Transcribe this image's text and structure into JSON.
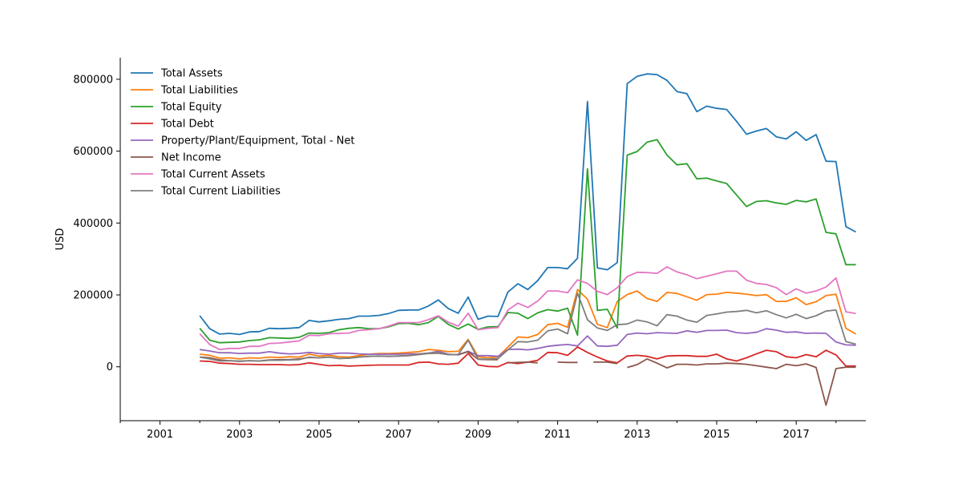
{
  "chart_data": {
    "type": "line",
    "title": "",
    "xlabel": "",
    "ylabel": "USD",
    "grid": false,
    "legend_position": "top-left",
    "xlim": [
      2000.0,
      2018.75
    ],
    "ylim": [
      -150000,
      860000
    ],
    "xticks": [
      {
        "value": 2001,
        "label": "2001"
      },
      {
        "value": 2003,
        "label": "2003"
      },
      {
        "value": 2005,
        "label": "2005"
      },
      {
        "value": 2007,
        "label": "2007"
      },
      {
        "value": 2009,
        "label": "2009"
      },
      {
        "value": 2011,
        "label": "2011"
      },
      {
        "value": 2013,
        "label": "2013"
      },
      {
        "value": 2015,
        "label": "2015"
      },
      {
        "value": 2017,
        "label": "2017"
      }
    ],
    "yticks": [
      {
        "value": 0,
        "label": "0"
      },
      {
        "value": 200000,
        "label": "200000"
      },
      {
        "value": 400000,
        "label": "400000"
      },
      {
        "value": 600000,
        "label": "600000"
      },
      {
        "value": 800000,
        "label": "800000"
      }
    ],
    "x": [
      2002.0,
      2002.25,
      2002.5,
      2002.75,
      2003.0,
      2003.25,
      2003.5,
      2003.75,
      2004.0,
      2004.25,
      2004.5,
      2004.75,
      2005.0,
      2005.25,
      2005.5,
      2005.75,
      2006.0,
      2006.25,
      2006.5,
      2006.75,
      2007.0,
      2007.25,
      2007.5,
      2007.75,
      2008.0,
      2008.25,
      2008.5,
      2008.75,
      2009.0,
      2009.25,
      2009.5,
      2009.75,
      2010.0,
      2010.25,
      2010.5,
      2010.75,
      2011.0,
      2011.25,
      2011.5,
      2011.75,
      2012.0,
      2012.25,
      2012.5,
      2012.75,
      2013.0,
      2013.25,
      2013.5,
      2013.75,
      2014.0,
      2014.25,
      2014.5,
      2014.75,
      2015.0,
      2015.25,
      2015.5,
      2015.75,
      2016.0,
      2016.25,
      2016.5,
      2016.75,
      2017.0,
      2017.25,
      2017.5,
      2017.75,
      2018.0,
      2018.25,
      2018.5
    ],
    "series": [
      {
        "name": "Total Assets",
        "color": "#1f77b4",
        "values": [
          142000,
          106000,
          91000,
          93000,
          90000,
          97000,
          98000,
          107000,
          106000,
          107000,
          109000,
          129000,
          125000,
          128000,
          132000,
          134000,
          141000,
          141000,
          143000,
          148000,
          157000,
          158000,
          158000,
          169000,
          186000,
          162000,
          149000,
          194000,
          132000,
          141000,
          140000,
          208000,
          231000,
          215000,
          240000,
          276000,
          276000,
          273000,
          302000,
          738000,
          275000,
          270000,
          290000,
          788000,
          808000,
          815000,
          813000,
          797000,
          766000,
          760000,
          710000,
          725000,
          719000,
          716000,
          683000,
          647000,
          656000,
          663000,
          640000,
          634000,
          654000,
          630000,
          646000,
          572000,
          571000,
          390000,
          375000
        ]
      },
      {
        "name": "Total Liabilities",
        "color": "#ff7f0e",
        "values": [
          35000,
          32000,
          24000,
          25000,
          22000,
          25000,
          24000,
          27000,
          26000,
          28000,
          27000,
          35000,
          30000,
          32000,
          28000,
          27000,
          31000,
          35000,
          37000,
          37000,
          38000,
          40000,
          42000,
          48000,
          46000,
          42000,
          43000,
          76000,
          28000,
          25000,
          28000,
          55000,
          83000,
          81000,
          90000,
          117000,
          121000,
          110000,
          215000,
          188000,
          118000,
          109000,
          182000,
          201000,
          211000,
          190000,
          182000,
          207000,
          204000,
          195000,
          185000,
          201000,
          202000,
          207000,
          205000,
          202000,
          198000,
          201000,
          182000,
          182000,
          192000,
          173000,
          181000,
          198000,
          202000,
          107000,
          91000
        ]
      },
      {
        "name": "Total Equity",
        "color": "#2ca02c",
        "values": [
          107000,
          74000,
          67000,
          68000,
          69000,
          73000,
          75000,
          81000,
          80000,
          79000,
          82000,
          94000,
          93000,
          95000,
          103000,
          107000,
          109000,
          106000,
          106000,
          111000,
          120000,
          121000,
          117000,
          123000,
          140000,
          118000,
          105000,
          119000,
          104000,
          111000,
          112000,
          151000,
          149000,
          134000,
          150000,
          159000,
          155000,
          163000,
          88000,
          551000,
          157000,
          160000,
          108000,
          589000,
          599000,
          625000,
          632000,
          589000,
          562000,
          565000,
          523000,
          525000,
          517000,
          510000,
          478000,
          446000,
          460000,
          462000,
          456000,
          452000,
          463000,
          459000,
          467000,
          374000,
          370000,
          284000,
          284000
        ]
      },
      {
        "name": "Total Debt",
        "color": "#d62728",
        "values": [
          16000,
          15000,
          10000,
          9000,
          7000,
          7000,
          6000,
          6000,
          6000,
          5000,
          6000,
          11000,
          7000,
          3000,
          4000,
          2000,
          3000,
          4000,
          5000,
          5000,
          5000,
          5000,
          12000,
          13000,
          8000,
          7000,
          10000,
          37000,
          5000,
          1000,
          0,
          12000,
          9000,
          13000,
          18000,
          40000,
          39000,
          32000,
          55000,
          40000,
          27000,
          16000,
          11000,
          30000,
          32000,
          29000,
          22000,
          30000,
          31000,
          31000,
          29000,
          29000,
          35000,
          22000,
          16000,
          25000,
          36000,
          46000,
          42000,
          28000,
          25000,
          34000,
          28000,
          46000,
          33000,
          2000,
          2000
        ]
      },
      {
        "name": "Property/Plant/Equipment, Total - Net",
        "color": "#9467bd",
        "values": [
          48000,
          44000,
          39000,
          39000,
          37000,
          38000,
          38000,
          42000,
          38000,
          36000,
          37000,
          40000,
          37000,
          35000,
          38000,
          38000,
          36000,
          35000,
          35000,
          35000,
          35000,
          36000,
          36000,
          38000,
          43000,
          35000,
          33000,
          43000,
          31000,
          31000,
          29000,
          48000,
          49000,
          47000,
          51000,
          57000,
          60000,
          62000,
          58000,
          86000,
          58000,
          57000,
          60000,
          90000,
          94000,
          92000,
          95000,
          94000,
          93000,
          100000,
          96000,
          101000,
          101000,
          102000,
          95000,
          93000,
          96000,
          106000,
          102000,
          96000,
          97000,
          93000,
          94000,
          93000,
          69000,
          61000,
          60000
        ]
      },
      {
        "name": "Net Income",
        "color": "#8c564b",
        "values": [
          27000,
          25000,
          19000,
          17000,
          15000,
          17000,
          16000,
          19000,
          20000,
          20000,
          22000,
          26000,
          25000,
          27000,
          23000,
          24000,
          27000,
          29000,
          30000,
          29000,
          30000,
          31000,
          34000,
          37000,
          38000,
          34000,
          34000,
          42000,
          21000,
          20000,
          20000,
          null,
          null,
          null,
          null,
          null,
          null,
          null,
          null,
          null,
          null,
          null,
          null,
          -2000,
          6000,
          22000,
          10000,
          -3000,
          7000,
          7000,
          5000,
          8000,
          8000,
          10000,
          9000,
          7000,
          3000,
          -1000,
          -5000,
          7000,
          3000,
          8000,
          -2000,
          -107000,
          -5000,
          -1000,
          -1000
        ]
      },
      {
        "name": "Total Current Assets",
        "color": "#e377c2",
        "values": [
          92000,
          62000,
          48000,
          51000,
          51000,
          57000,
          57000,
          65000,
          66000,
          69000,
          72000,
          88000,
          87000,
          92000,
          93000,
          94000,
          101000,
          103000,
          106000,
          113000,
          123000,
          123000,
          123000,
          131000,
          142000,
          124000,
          113000,
          149000,
          103000,
          107000,
          109000,
          158000,
          177000,
          165000,
          183000,
          211000,
          211000,
          206000,
          242000,
          232000,
          210000,
          201000,
          220000,
          251000,
          263000,
          262000,
          260000,
          278000,
          264000,
          256000,
          245000,
          252000,
          259000,
          266000,
          266000,
          241000,
          232000,
          229000,
          220000,
          201000,
          217000,
          205000,
          211000,
          222000,
          247000,
          153000,
          148000
        ]
      },
      {
        "name": "Total Current Liabilities",
        "color": "#7f7f7f",
        "values": [
          27000,
          22000,
          16000,
          17000,
          16000,
          17000,
          16000,
          18000,
          18000,
          19000,
          20000,
          27000,
          25000,
          27000,
          23000,
          24000,
          27000,
          29000,
          30000,
          29000,
          30000,
          31000,
          35000,
          38000,
          39000,
          34000,
          34000,
          74000,
          22000,
          21000,
          23000,
          47000,
          70000,
          69000,
          74000,
          100000,
          105000,
          92000,
          205000,
          131000,
          108000,
          101000,
          117000,
          119000,
          130000,
          125000,
          114000,
          145000,
          141000,
          130000,
          124000,
          143000,
          147000,
          152000,
          154000,
          157000,
          150000,
          156000,
          145000,
          136000,
          146000,
          134000,
          142000,
          155000,
          158000,
          70000,
          63000
        ]
      }
    ],
    "segments": [
      {
        "series_index": 5,
        "x": [
          2009.75,
          2010.0,
          2010.25,
          2010.5
        ],
        "values": [
          11000,
          12000,
          13000,
          11000
        ]
      },
      {
        "series_index": 5,
        "x": [
          2011.0,
          2011.25,
          2011.5
        ],
        "values": [
          13000,
          12000,
          12000
        ]
      },
      {
        "series_index": 5,
        "x": [
          2011.9,
          2012.25,
          2012.5
        ],
        "values": [
          13000,
          13000,
          9000
        ]
      }
    ]
  }
}
